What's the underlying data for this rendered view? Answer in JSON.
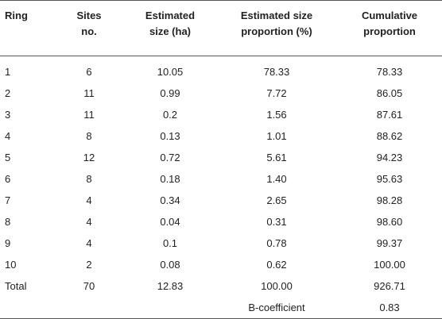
{
  "table": {
    "headers": [
      {
        "line1": "Ring",
        "line2": ""
      },
      {
        "line1": "Sites",
        "line2": "no."
      },
      {
        "line1": "Estimated",
        "line2": "size (ha)"
      },
      {
        "line1": "Estimated size",
        "line2": "proportion (%)"
      },
      {
        "line1": "Cumulative",
        "line2": "proportion"
      }
    ],
    "rows": [
      [
        "1",
        "6",
        "10.05",
        "78.33",
        "78.33"
      ],
      [
        "2",
        "11",
        "0.99",
        "7.72",
        "86.05"
      ],
      [
        "3",
        "11",
        "0.2",
        "1.56",
        "87.61"
      ],
      [
        "4",
        "8",
        "0.13",
        "1.01",
        "88.62"
      ],
      [
        "5",
        "12",
        "0.72",
        "5.61",
        "94.23"
      ],
      [
        "6",
        "8",
        "0.18",
        "1.40",
        "95.63"
      ],
      [
        "7",
        "4",
        "0.34",
        "2.65",
        "98.28"
      ],
      [
        "8",
        "4",
        "0.04",
        "0.31",
        "98.60"
      ],
      [
        "9",
        "4",
        "0.1",
        "0.78",
        "99.37"
      ],
      [
        "10",
        "2",
        "0.08",
        "0.62",
        "100.00"
      ],
      [
        "Total",
        "70",
        "12.83",
        "100.00",
        "926.71"
      ]
    ],
    "b_coefficient": {
      "label": "B-coefficient",
      "value": "0.83"
    }
  }
}
